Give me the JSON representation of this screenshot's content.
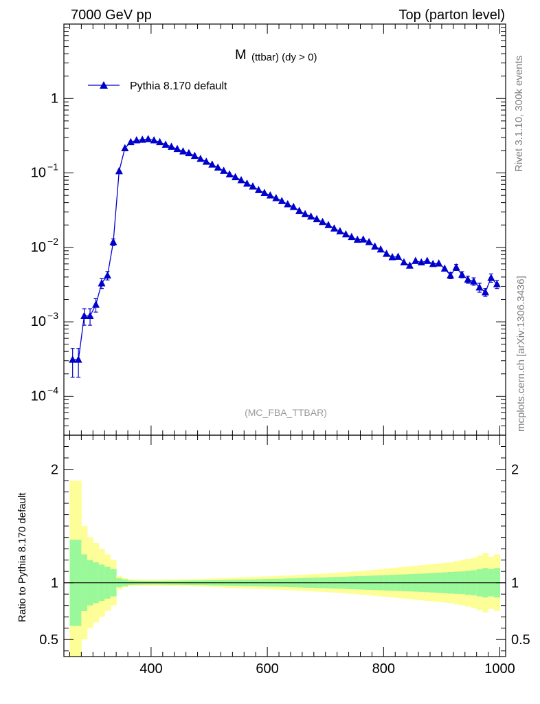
{
  "header": {
    "left": "7000 GeV pp",
    "right": "Top (parton level)"
  },
  "side": {
    "rivet": "Rivet 3.1.10,  300k events",
    "mcplots": "mcplots.cern.ch [arXiv:1306.3436]"
  },
  "analysis_tag": "(MC_FBA_TTBAR)",
  "colors": {
    "series": "#0000cc",
    "band_inner": "#99f899",
    "band_outer": "#fefe99",
    "tag": "#999999",
    "side": "#808080"
  },
  "chart_data": [
    {
      "type": "line",
      "title_main": "M",
      "title_sub": "(ttbar) (dy > 0)",
      "yscale": "log",
      "xlim": [
        250,
        1010
      ],
      "ylim": [
        3e-05,
        10
      ],
      "legend": {
        "entries": [
          "Pythia 8.170 default"
        ],
        "placement": "top-left"
      },
      "yticks": [
        {
          "value": 1,
          "base": "1",
          "exp": ""
        },
        {
          "value": 0.1,
          "base": "10",
          "exp": "−1"
        },
        {
          "value": 0.01,
          "base": "10",
          "exp": "−2"
        },
        {
          "value": 0.001,
          "base": "10",
          "exp": "−3"
        },
        {
          "value": 0.0001,
          "base": "10",
          "exp": "−4"
        }
      ],
      "series": [
        {
          "name": "Pythia 8.170 default",
          "marker": "triangle",
          "x": [
            265,
            275,
            285,
            295,
            305,
            315,
            325,
            335,
            345,
            355,
            365,
            375,
            385,
            395,
            405,
            415,
            425,
            435,
            445,
            455,
            465,
            475,
            485,
            495,
            505,
            515,
            525,
            535,
            545,
            555,
            565,
            575,
            585,
            595,
            605,
            615,
            625,
            635,
            645,
            655,
            665,
            675,
            685,
            695,
            705,
            715,
            725,
            735,
            745,
            755,
            765,
            775,
            785,
            795,
            805,
            815,
            825,
            835,
            845,
            855,
            865,
            875,
            885,
            895,
            905,
            915,
            925,
            935,
            945,
            955,
            965,
            975,
            985,
            995
          ],
          "y": [
            0.00031,
            0.00031,
            0.0012,
            0.0012,
            0.0017,
            0.0033,
            0.0042,
            0.0118,
            0.106,
            0.215,
            0.26,
            0.275,
            0.28,
            0.285,
            0.275,
            0.26,
            0.24,
            0.225,
            0.21,
            0.195,
            0.185,
            0.17,
            0.155,
            0.142,
            0.13,
            0.118,
            0.107,
            0.096,
            0.088,
            0.08,
            0.072,
            0.066,
            0.059,
            0.054,
            0.05,
            0.046,
            0.042,
            0.038,
            0.035,
            0.031,
            0.028,
            0.026,
            0.024,
            0.022,
            0.02,
            0.018,
            0.0165,
            0.015,
            0.0138,
            0.0127,
            0.0128,
            0.0118,
            0.0103,
            0.0094,
            0.0082,
            0.0074,
            0.0075,
            0.0063,
            0.0057,
            0.0066,
            0.0063,
            0.0066,
            0.006,
            0.0061,
            0.0052,
            0.0042,
            0.0054,
            0.0043,
            0.0037,
            0.0035,
            0.0029,
            0.0025,
            0.0039,
            0.0032
          ],
          "yerr": [
            0.00013,
            0.00013,
            0.0003,
            0.0003,
            0.00035,
            0.0005,
            0.00055,
            0.0012,
            0.002,
            0.003,
            0.003,
            0.003,
            0.003,
            0.003,
            0.003,
            0.003,
            0.003,
            0.003,
            0.0025,
            0.0025,
            0.0025,
            0.002,
            0.002,
            0.002,
            0.002,
            0.0015,
            0.0015,
            0.0015,
            0.0015,
            0.0012,
            0.0012,
            0.001,
            0.001,
            0.001,
            0.0009,
            0.0008,
            0.0008,
            0.0007,
            0.0007,
            0.0006,
            0.0006,
            0.0006,
            0.0005,
            0.0005,
            0.0005,
            0.0005,
            0.0004,
            0.0004,
            0.0004,
            0.0004,
            0.0004,
            0.0004,
            0.0004,
            0.0004,
            0.0004,
            0.0004,
            0.0004,
            0.0004,
            0.0004,
            0.0004,
            0.0004,
            0.0004,
            0.0004,
            0.0004,
            0.0004,
            0.0004,
            0.0005,
            0.0004,
            0.0004,
            0.0004,
            0.0004,
            0.0003,
            0.0005,
            0.0004
          ]
        }
      ]
    },
    {
      "type": "area",
      "ylabel": "Ratio to Pythia 8.170 default",
      "xlim": [
        250,
        1010
      ],
      "ylim": [
        0.35,
        2.3
      ],
      "xticks": [
        400,
        600,
        800,
        1000
      ],
      "yticks": [
        0.5,
        1,
        2
      ],
      "reference_line": 1,
      "band_edges": [
        260,
        270,
        280,
        290,
        300,
        310,
        320,
        330,
        340,
        350,
        360,
        370,
        380,
        390,
        400,
        410,
        420,
        430,
        440,
        450,
        460,
        470,
        480,
        490,
        500,
        510,
        520,
        530,
        540,
        550,
        560,
        570,
        580,
        590,
        600,
        610,
        620,
        630,
        640,
        650,
        660,
        670,
        680,
        690,
        700,
        710,
        720,
        730,
        740,
        750,
        760,
        770,
        780,
        790,
        800,
        810,
        820,
        830,
        840,
        850,
        860,
        870,
        880,
        890,
        900,
        910,
        920,
        930,
        940,
        950,
        960,
        970,
        980,
        990,
        1000
      ],
      "inner_half_width": [
        0.38,
        0.38,
        0.25,
        0.2,
        0.18,
        0.16,
        0.14,
        0.12,
        0.04,
        0.03,
        0.02,
        0.018,
        0.017,
        0.016,
        0.016,
        0.016,
        0.017,
        0.018,
        0.018,
        0.019,
        0.02,
        0.021,
        0.021,
        0.022,
        0.023,
        0.024,
        0.025,
        0.026,
        0.027,
        0.028,
        0.029,
        0.03,
        0.031,
        0.033,
        0.034,
        0.035,
        0.036,
        0.038,
        0.039,
        0.041,
        0.043,
        0.044,
        0.046,
        0.047,
        0.049,
        0.051,
        0.052,
        0.054,
        0.056,
        0.058,
        0.06,
        0.062,
        0.064,
        0.066,
        0.068,
        0.07,
        0.072,
        0.074,
        0.076,
        0.078,
        0.08,
        0.083,
        0.086,
        0.089,
        0.092,
        0.095,
        0.098,
        0.1,
        0.105,
        0.11,
        0.12,
        0.13,
        0.12,
        0.13
      ],
      "outer_half_width": [
        0.9,
        0.9,
        0.5,
        0.4,
        0.35,
        0.3,
        0.25,
        0.2,
        0.06,
        0.04,
        0.03,
        0.028,
        0.027,
        0.026,
        0.026,
        0.027,
        0.028,
        0.029,
        0.03,
        0.031,
        0.032,
        0.033,
        0.034,
        0.036,
        0.038,
        0.04,
        0.042,
        0.044,
        0.046,
        0.048,
        0.05,
        0.052,
        0.054,
        0.056,
        0.058,
        0.06,
        0.062,
        0.064,
        0.067,
        0.07,
        0.072,
        0.075,
        0.078,
        0.08,
        0.083,
        0.086,
        0.09,
        0.094,
        0.098,
        0.102,
        0.106,
        0.11,
        0.115,
        0.12,
        0.125,
        0.13,
        0.135,
        0.14,
        0.145,
        0.15,
        0.155,
        0.16,
        0.165,
        0.17,
        0.175,
        0.18,
        0.19,
        0.2,
        0.21,
        0.22,
        0.24,
        0.26,
        0.23,
        0.25
      ]
    }
  ]
}
